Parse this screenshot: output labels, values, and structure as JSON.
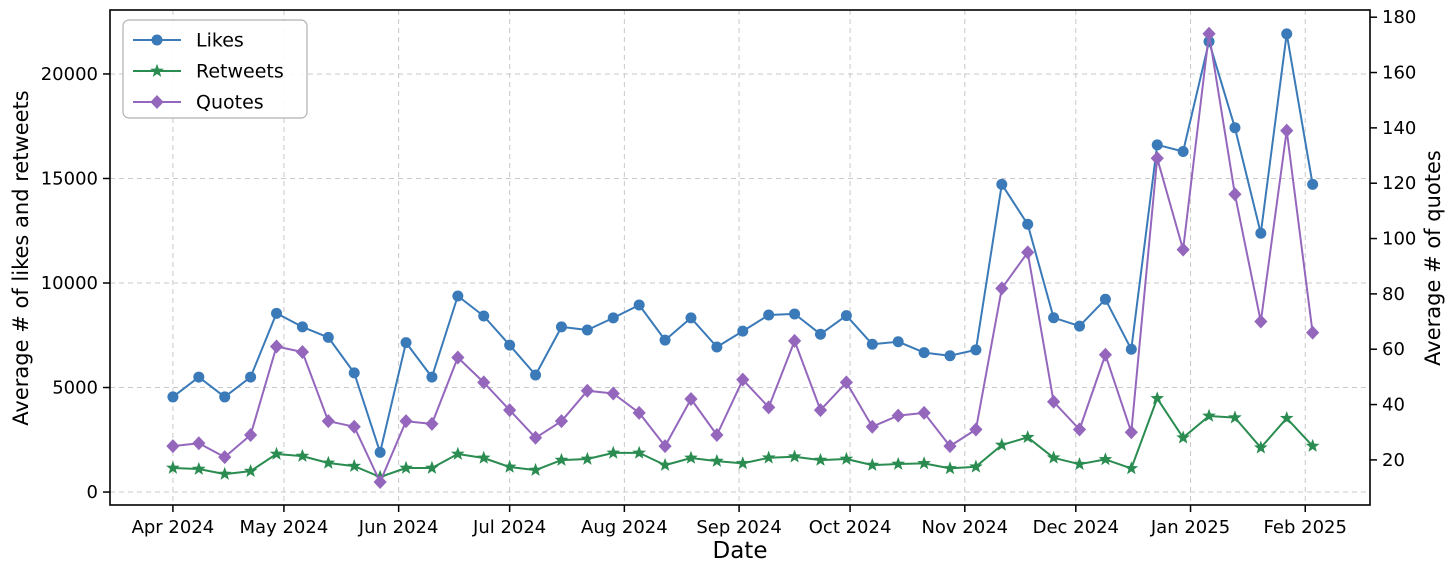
{
  "chart_data": {
    "type": "line",
    "title": "",
    "xlabel": "Date",
    "ylabel_left": "Average # of likes and retweets",
    "ylabel_right": "Average # of quotes",
    "grid": true,
    "legend_position": "upper left",
    "x_start_date": "2024-04-01",
    "x_interval_days": 7,
    "dates": [
      "2024-04-01",
      "2024-04-08",
      "2024-04-15",
      "2024-04-22",
      "2024-04-29",
      "2024-05-06",
      "2024-05-13",
      "2024-05-20",
      "2024-05-27",
      "2024-06-03",
      "2024-06-10",
      "2024-06-17",
      "2024-06-24",
      "2024-07-01",
      "2024-07-08",
      "2024-07-15",
      "2024-07-22",
      "2024-07-29",
      "2024-08-05",
      "2024-08-12",
      "2024-08-19",
      "2024-08-26",
      "2024-09-02",
      "2024-09-09",
      "2024-09-16",
      "2024-09-23",
      "2024-09-30",
      "2024-10-07",
      "2024-10-14",
      "2024-10-21",
      "2024-10-28",
      "2024-11-04",
      "2024-11-11",
      "2024-11-18",
      "2024-11-25",
      "2024-12-02",
      "2024-12-09",
      "2024-12-16",
      "2024-12-23",
      "2024-12-30",
      "2025-01-06",
      "2025-01-13",
      "2025-01-20",
      "2025-01-27",
      "2025-02-03"
    ],
    "x_tick_labels": [
      "Apr 2024",
      "May 2024",
      "Jun 2024",
      "Jul 2024",
      "Aug 2024",
      "Sep 2024",
      "Oct 2024",
      "Nov 2024",
      "Dec 2024",
      "Jan 2025",
      "Feb 2025"
    ],
    "x_tick_day_offsets": [
      0,
      30,
      61,
      91,
      122,
      153,
      183,
      214,
      244,
      275,
      306
    ],
    "x_day_range": [
      -17,
      323.5
    ],
    "left_ylim": [
      -620,
      23060
    ],
    "right_ylim": [
      3.7,
      182.6
    ],
    "left_yticks": [
      0,
      5000,
      10000,
      15000,
      20000
    ],
    "left_ytick_labels": [
      "0",
      "5000",
      "10000",
      "15000",
      "20000"
    ],
    "right_yticks": [
      20,
      40,
      60,
      80,
      100,
      120,
      140,
      160,
      180
    ],
    "right_ytick_labels": [
      "20",
      "40",
      "60",
      "80",
      "100",
      "120",
      "140",
      "160",
      "180"
    ],
    "series": [
      {
        "name": "Likes",
        "axis": "left",
        "color": "#3a7ab8",
        "marker": "circle",
        "values": [
          4550,
          5500,
          4550,
          5500,
          8550,
          7900,
          7400,
          5700,
          1900,
          7150,
          5500,
          9380,
          8420,
          7030,
          5600,
          7900,
          7750,
          8330,
          8950,
          7270,
          8330,
          6940,
          7700,
          8470,
          8520,
          7550,
          8440,
          7070,
          7190,
          6670,
          6520,
          6800,
          14720,
          12810,
          8340,
          7940,
          9220,
          6830,
          16610,
          16290,
          21550,
          17430,
          12380,
          21920,
          14720
        ]
      },
      {
        "name": "Retweets",
        "axis": "left",
        "color": "#2a8c50",
        "marker": "star",
        "values": [
          1150,
          1100,
          860,
          1000,
          1820,
          1720,
          1390,
          1240,
          720,
          1150,
          1150,
          1820,
          1630,
          1200,
          1050,
          1530,
          1580,
          1870,
          1870,
          1290,
          1630,
          1480,
          1370,
          1640,
          1690,
          1530,
          1580,
          1290,
          1340,
          1370,
          1130,
          1210,
          2250,
          2620,
          1640,
          1330,
          1560,
          1130,
          4480,
          2600,
          3640,
          3560,
          2120,
          3530,
          2200
        ]
      },
      {
        "name": "Quotes",
        "axis": "right",
        "color": "#9467bd",
        "marker": "diamond",
        "values": [
          25,
          26,
          21,
          29,
          61,
          59,
          34,
          32,
          12,
          34,
          33,
          57,
          48,
          38,
          28,
          34,
          45,
          44,
          37,
          25,
          42,
          29,
          49,
          39,
          63,
          38,
          48,
          32,
          36,
          37,
          25,
          31,
          82,
          95,
          41,
          31,
          58,
          30,
          129,
          96,
          174,
          116,
          70,
          139,
          66
        ]
      }
    ],
    "colors": {
      "grid": "#c9c9c9",
      "spine": "#000000",
      "legend_border": "#b0b0b0",
      "background": "#ffffff"
    }
  }
}
